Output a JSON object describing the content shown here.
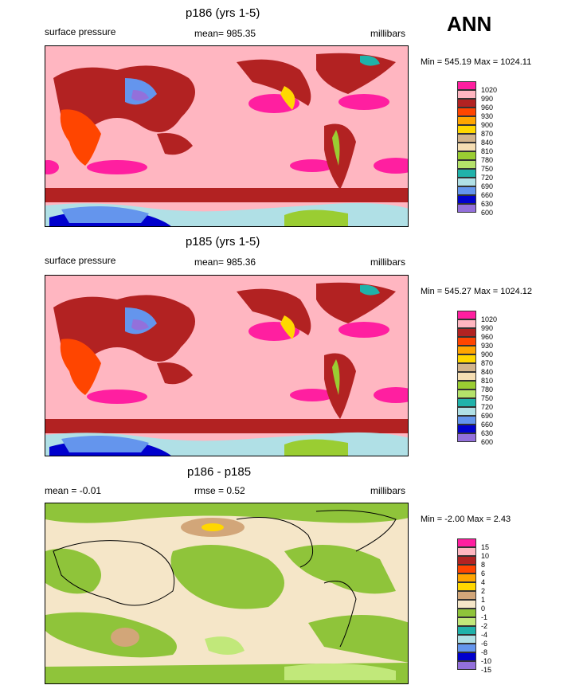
{
  "header": {
    "season": "ANN"
  },
  "panels": [
    {
      "title": "p186 (yrs 1-5)",
      "left_label": "surface pressure",
      "center_label": "mean= 985.35",
      "right_label": "millibars",
      "minmax": "Min = 545.19 Max = 1024.11",
      "legend": [
        "1020",
        "990",
        "960",
        "930",
        "900",
        "870",
        "840",
        "810",
        "780",
        "750",
        "720",
        "690",
        "660",
        "630",
        "600"
      ]
    },
    {
      "title": "p185 (yrs 1-5)",
      "left_label": "surface pressure",
      "center_label": "mean= 985.36",
      "right_label": "millibars",
      "minmax": "Min = 545.27 Max = 1024.12",
      "legend": [
        "1020",
        "990",
        "960",
        "930",
        "900",
        "870",
        "840",
        "810",
        "780",
        "750",
        "720",
        "690",
        "660",
        "630",
        "600"
      ]
    },
    {
      "title": "p186 - p185",
      "left_label": "mean =  -0.01",
      "center_label": "rmse =   0.52",
      "right_label": "millibars",
      "minmax": "Min =  -2.00 Max =   2.43",
      "legend": [
        "15",
        "10",
        "8",
        "6",
        "4",
        "2",
        "1",
        "0",
        "-1",
        "-2",
        "-4",
        "-6",
        "-8",
        "-10",
        "-15"
      ]
    }
  ],
  "colors": {
    "scale": [
      "#ff1fa0",
      "#ffb6c1",
      "#b22222",
      "#ff4500",
      "#ffa500",
      "#ffd700",
      "#d2b48c",
      "#f5deb3",
      "#9acd32",
      "#b5e26a",
      "#20b2aa",
      "#b0e0e6",
      "#6495ed",
      "#0000cd",
      "#9370db"
    ],
    "diff_scale": [
      "#ff1fa0",
      "#ffb6c1",
      "#b22222",
      "#ff4500",
      "#ffa500",
      "#ffd700",
      "#d2a679",
      "#f5e6c8",
      "#8fc43a",
      "#c1e87a",
      "#20b2aa",
      "#b0e0e6",
      "#6495ed",
      "#0000cd",
      "#9370db"
    ]
  }
}
